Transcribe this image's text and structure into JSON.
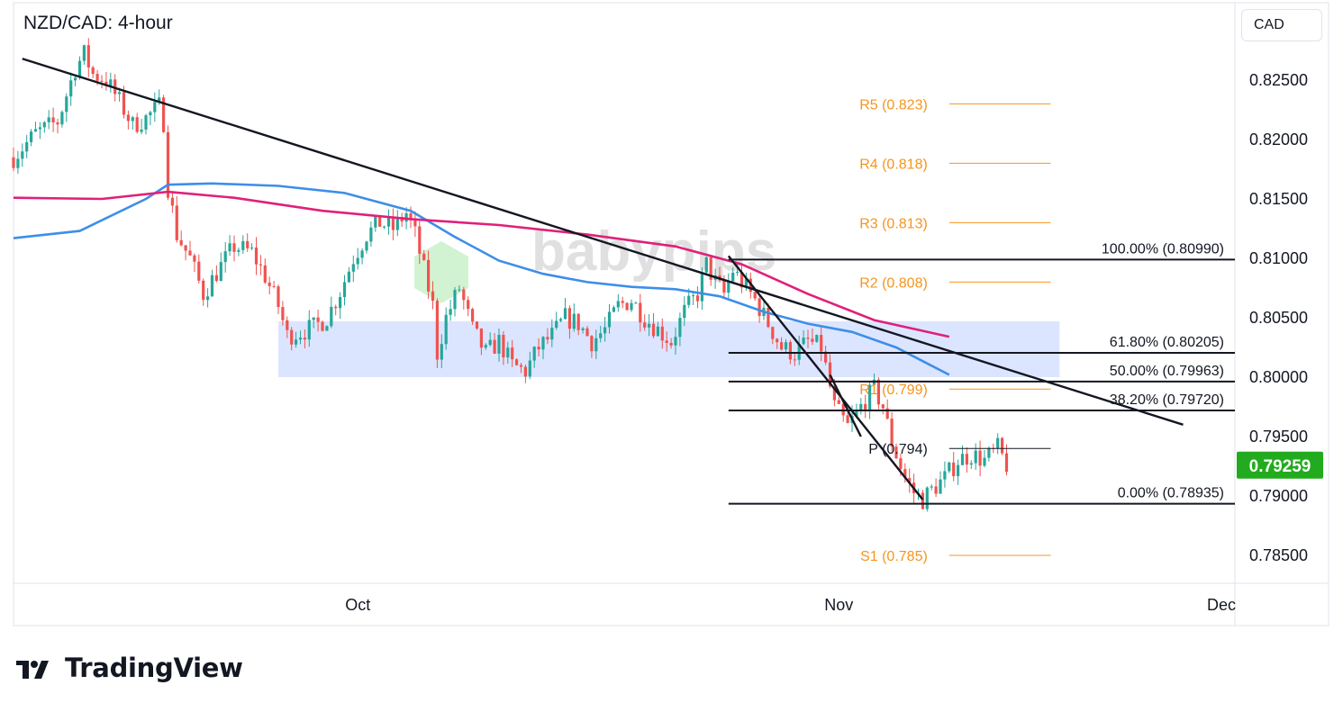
{
  "chart_data": {
    "type": "candlestick",
    "title": "NZD/CAD: 4-hour",
    "currency": "CAD",
    "ylim": [
      0.7805,
      0.8302
    ],
    "y_ticks": [
      "0.82500",
      "0.82000",
      "0.81500",
      "0.81000",
      "0.80500",
      "0.80000",
      "0.79500",
      "0.79000",
      "0.78500"
    ],
    "x_ticks": [
      "Oct",
      "Nov",
      "Dec"
    ],
    "last_price": "0.79259",
    "last_price_value": 0.79259,
    "price_path": [
      [
        0,
        0.8185
      ],
      [
        5,
        0.8205
      ],
      [
        10,
        0.8215
      ],
      [
        14,
        0.826
      ],
      [
        16,
        0.8272
      ],
      [
        18,
        0.8255
      ],
      [
        21,
        0.825
      ],
      [
        24,
        0.8232
      ],
      [
        27,
        0.8212
      ],
      [
        30,
        0.8218
      ],
      [
        33,
        0.8228
      ],
      [
        34,
        0.8215
      ],
      [
        35,
        0.816
      ],
      [
        37,
        0.812
      ],
      [
        40,
        0.81
      ],
      [
        43,
        0.807
      ],
      [
        46,
        0.8088
      ],
      [
        50,
        0.811
      ],
      [
        54,
        0.8105
      ],
      [
        57,
        0.8085
      ],
      [
        60,
        0.806
      ],
      [
        62,
        0.8035
      ],
      [
        65,
        0.8038
      ],
      [
        68,
        0.8042
      ],
      [
        71,
        0.805
      ],
      [
        74,
        0.8072
      ],
      [
        77,
        0.81
      ],
      [
        80,
        0.812
      ],
      [
        83,
        0.813
      ],
      [
        86,
        0.8125
      ],
      [
        89,
        0.8138
      ],
      [
        91,
        0.812
      ],
      [
        93,
        0.809
      ],
      [
        95,
        0.806
      ],
      [
        96,
        0.802
      ],
      [
        98,
        0.805
      ],
      [
        101,
        0.8075
      ],
      [
        104,
        0.804
      ],
      [
        107,
        0.802
      ],
      [
        110,
        0.803
      ],
      [
        113,
        0.801
      ],
      [
        116,
        0.8005
      ],
      [
        119,
        0.8025
      ],
      [
        122,
        0.8035
      ],
      [
        125,
        0.805
      ],
      [
        128,
        0.8045
      ],
      [
        131,
        0.803
      ],
      [
        134,
        0.804
      ],
      [
        137,
        0.806
      ],
      [
        140,
        0.8065
      ],
      [
        143,
        0.805
      ],
      [
        146,
        0.804
      ],
      [
        149,
        0.803
      ],
      [
        152,
        0.8055
      ],
      [
        155,
        0.807
      ],
      [
        157,
        0.8095
      ],
      [
        159,
        0.808
      ],
      [
        161,
        0.807
      ],
      [
        163,
        0.809
      ],
      [
        165,
        0.808
      ],
      [
        168,
        0.8065
      ],
      [
        171,
        0.8045
      ],
      [
        174,
        0.8025
      ],
      [
        177,
        0.802
      ],
      [
        180,
        0.803
      ],
      [
        183,
        0.8025
      ],
      [
        186,
        0.7975
      ],
      [
        189,
        0.7958
      ],
      [
        192,
        0.7975
      ],
      [
        195,
        0.799
      ],
      [
        197,
        0.7975
      ],
      [
        199,
        0.7945
      ],
      [
        202,
        0.7915
      ],
      [
        204,
        0.7903
      ],
      [
        206,
        0.7897
      ],
      [
        208,
        0.7905
      ],
      [
        211,
        0.7915
      ],
      [
        214,
        0.793
      ],
      [
        217,
        0.7935
      ],
      [
        220,
        0.793
      ],
      [
        223,
        0.794
      ],
      [
        225,
        0.7926
      ]
    ],
    "series": [
      {
        "name": "100 SMA",
        "color": "#3d8ee8",
        "points": [
          [
            0,
            0.8117
          ],
          [
            15,
            0.8123
          ],
          [
            30,
            0.815
          ],
          [
            35,
            0.8162
          ],
          [
            45,
            0.8163
          ],
          [
            60,
            0.8161
          ],
          [
            75,
            0.8155
          ],
          [
            90,
            0.814
          ],
          [
            100,
            0.8118
          ],
          [
            110,
            0.8098
          ],
          [
            120,
            0.8087
          ],
          [
            130,
            0.808
          ],
          [
            140,
            0.8076
          ],
          [
            150,
            0.8074
          ],
          [
            160,
            0.8068
          ],
          [
            170,
            0.8055
          ],
          [
            180,
            0.8045
          ],
          [
            190,
            0.8038
          ],
          [
            200,
            0.8025
          ],
          [
            212,
            0.8002
          ]
        ]
      },
      {
        "name": "200 SMA",
        "color": "#e0207a",
        "points": [
          [
            0,
            0.8151
          ],
          [
            20,
            0.815
          ],
          [
            35,
            0.8156
          ],
          [
            50,
            0.8151
          ],
          [
            70,
            0.814
          ],
          [
            90,
            0.8133
          ],
          [
            110,
            0.8128
          ],
          [
            130,
            0.812
          ],
          [
            150,
            0.811
          ],
          [
            165,
            0.8095
          ],
          [
            180,
            0.807
          ],
          [
            195,
            0.8048
          ],
          [
            212,
            0.8034
          ]
        ]
      }
    ],
    "zone": {
      "x": [
        60,
        237
      ],
      "y": [
        0.8,
        0.8047
      ],
      "color": "#d6e0ff"
    },
    "trendlines": [
      {
        "name": "long-term descending trendline",
        "from": [
          2,
          0.8268
        ],
        "to": [
          265,
          0.796
        ]
      },
      {
        "name": "short-term descending channel top",
        "from": [
          162,
          0.8102
        ],
        "to": [
          206,
          0.7897
        ]
      },
      {
        "name": "short-term descending channel bottom",
        "from": [
          185,
          0.8002
        ],
        "to": [
          192,
          0.795
        ]
      }
    ],
    "fibonacci": [
      {
        "label": "100.00% (0.80990)",
        "value": 0.8099
      },
      {
        "label": "61.80% (0.80205)",
        "value": 0.80205
      },
      {
        "label": "50.00% (0.79963)",
        "value": 0.79963
      },
      {
        "label": "38.20% (0.79720)",
        "value": 0.7972
      },
      {
        "label": "0.00% (0.78935)",
        "value": 0.78935
      }
    ],
    "fib_x_start": 162,
    "pivots": [
      {
        "label": "R5 (0.823)",
        "value": 0.823
      },
      {
        "label": "R4 (0.818)",
        "value": 0.818
      },
      {
        "label": "R3 (0.813)",
        "value": 0.813
      },
      {
        "label": "R2 (0.808)",
        "value": 0.808
      },
      {
        "label": "R1 (0.799)",
        "value": 0.799
      },
      {
        "label": "P (0.794)",
        "value": 0.794
      },
      {
        "label": "S1 (0.785)",
        "value": 0.785
      }
    ],
    "pivot_x": [
      212,
      235
    ],
    "watermark": "babypips",
    "x_range": [
      0,
      280
    ],
    "x_tick_pos": [
      78,
      187,
      282
    ],
    "colors": {
      "up": "#26a69a",
      "down": "#ef5350",
      "pivot": "#f7941d",
      "line": "#131722",
      "price_tag": "#22ab1e",
      "grid": "#e0e3eb"
    }
  },
  "branding": {
    "name": "TradingView"
  }
}
